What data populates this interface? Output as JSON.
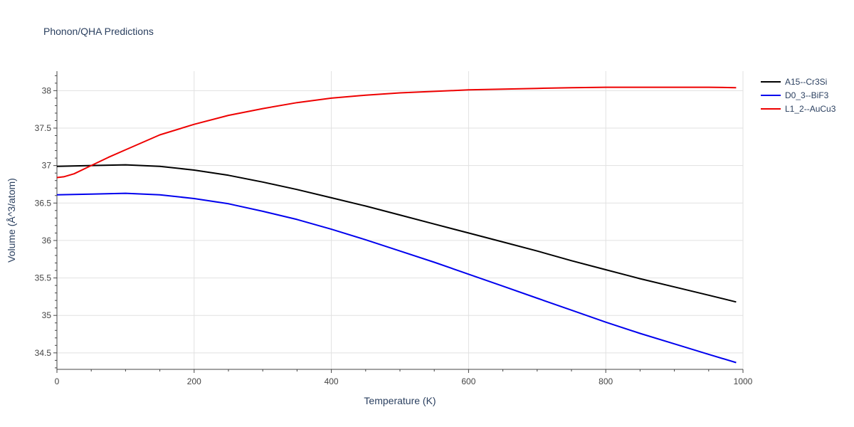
{
  "chart_data": {
    "type": "line",
    "title": "Phonon/QHA Predictions",
    "xlabel": "Temperature (K)",
    "ylabel": "Volume (Å^3/atom)",
    "xlim": [
      0,
      1000
    ],
    "ylim": [
      34.28,
      38.26
    ],
    "xticks": [
      0,
      200,
      400,
      600,
      800,
      1000
    ],
    "yticks": [
      34.5,
      35,
      35.5,
      36,
      36.5,
      37,
      37.5,
      38
    ],
    "grid": true,
    "legend_position": "top-right",
    "series": [
      {
        "name": "A15--Cr3Si",
        "color": "#000000",
        "x": [
          0,
          50,
          100,
          150,
          200,
          250,
          300,
          350,
          400,
          450,
          500,
          550,
          600,
          650,
          700,
          750,
          800,
          850,
          900,
          950,
          990
        ],
        "y": [
          36.99,
          37.0,
          37.01,
          36.99,
          36.94,
          36.87,
          36.78,
          36.68,
          36.57,
          36.46,
          36.34,
          36.22,
          36.1,
          35.98,
          35.86,
          35.73,
          35.61,
          35.49,
          35.38,
          35.27,
          35.18
        ]
      },
      {
        "name": "D0_3--BiF3",
        "color": "#0000ee",
        "x": [
          0,
          50,
          100,
          150,
          200,
          250,
          300,
          350,
          400,
          450,
          500,
          550,
          600,
          650,
          700,
          750,
          800,
          850,
          900,
          950,
          990
        ],
        "y": [
          36.61,
          36.62,
          36.63,
          36.61,
          36.56,
          36.49,
          36.39,
          36.28,
          36.15,
          36.01,
          35.86,
          35.71,
          35.55,
          35.39,
          35.23,
          35.07,
          34.91,
          34.76,
          34.62,
          34.48,
          34.37
        ]
      },
      {
        "name": "L1_2--AuCu3",
        "color": "#ee0000",
        "x": [
          0,
          10,
          25,
          50,
          75,
          100,
          150,
          200,
          250,
          300,
          350,
          400,
          450,
          500,
          550,
          600,
          650,
          700,
          750,
          800,
          850,
          900,
          950,
          990
        ],
        "y": [
          36.84,
          36.85,
          36.89,
          37.0,
          37.11,
          37.21,
          37.41,
          37.55,
          37.67,
          37.76,
          37.84,
          37.9,
          37.94,
          37.97,
          37.99,
          38.01,
          38.02,
          38.03,
          38.04,
          38.045,
          38.045,
          38.045,
          38.045,
          38.04
        ]
      }
    ]
  }
}
